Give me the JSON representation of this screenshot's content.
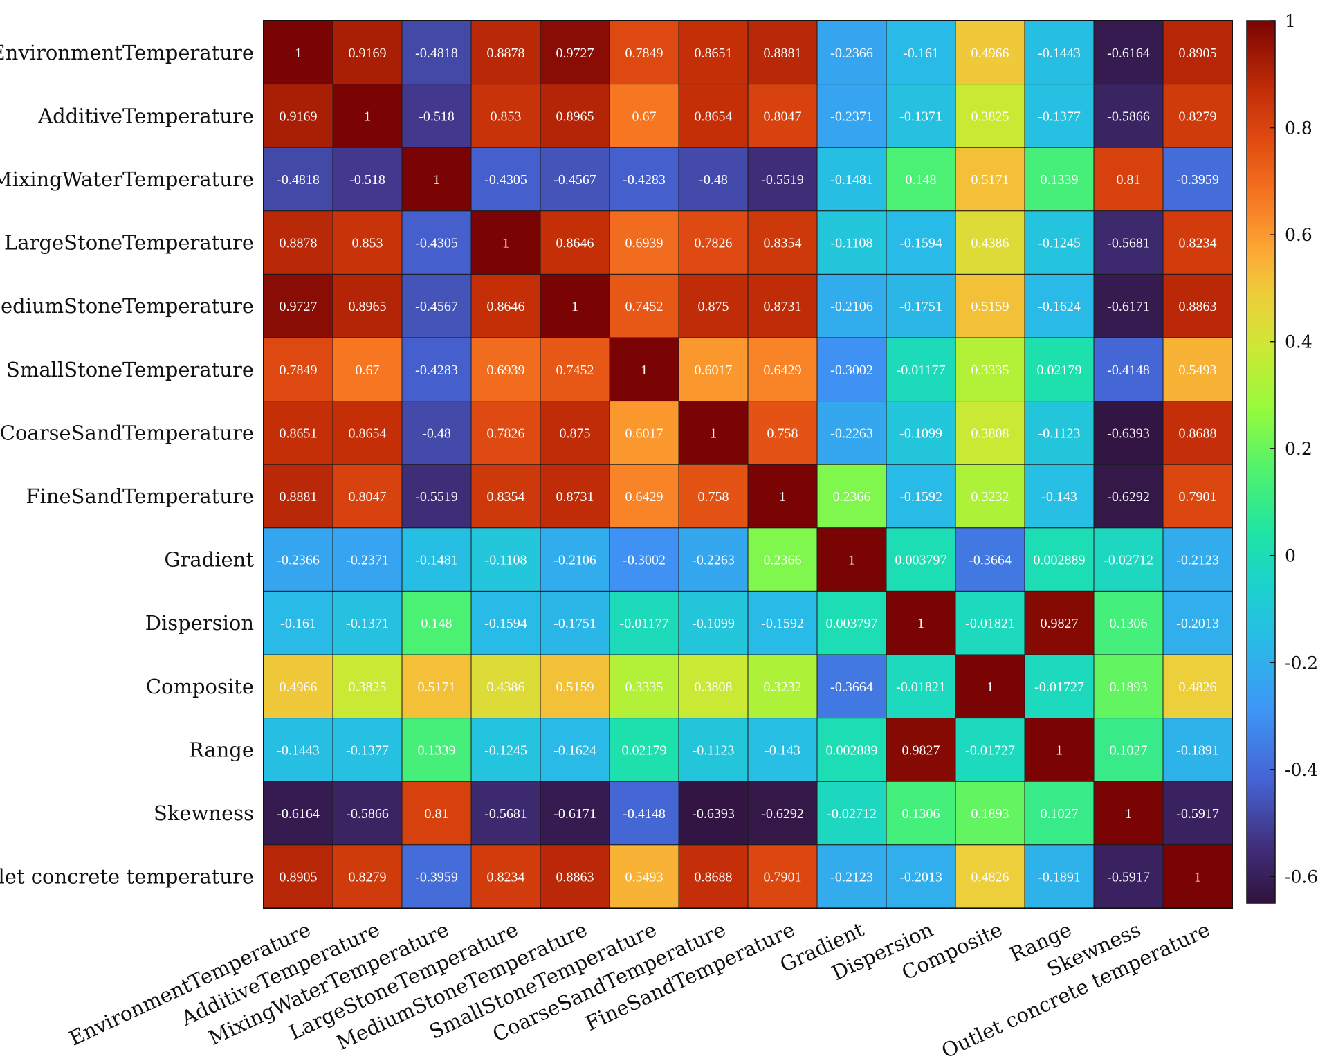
{
  "chart_data": {
    "type": "heatmap",
    "title": "",
    "xlabel": "",
    "ylabel": "",
    "labels": [
      "EnvironmentTemperature",
      "AdditiveTemperature",
      "MixingWaterTemperature",
      "LargeStoneTemperature",
      "MediumStoneTemperature",
      "SmallStoneTemperature",
      "CoarseSandTemperature",
      "FineSandTemperature",
      "Gradient",
      "Dispersion",
      "Composite",
      "Range",
      "Skewness",
      "Outlet concrete temperature"
    ],
    "matrix": [
      [
        "1",
        "0.9169",
        "-0.4818",
        "0.8878",
        "0.9727",
        "0.7849",
        "0.8651",
        "0.8881",
        "-0.2366",
        "-0.161",
        "0.4966",
        "-0.1443",
        "-0.6164",
        "0.8905"
      ],
      [
        "0.9169",
        "1",
        "-0.518",
        "0.853",
        "0.8965",
        "0.67",
        "0.8654",
        "0.8047",
        "-0.2371",
        "-0.1371",
        "0.3825",
        "-0.1377",
        "-0.5866",
        "0.8279"
      ],
      [
        "-0.4818",
        "-0.518",
        "1",
        "-0.4305",
        "-0.4567",
        "-0.4283",
        "-0.48",
        "-0.5519",
        "-0.1481",
        "0.148",
        "0.5171",
        "0.1339",
        "0.81",
        "-0.3959"
      ],
      [
        "0.8878",
        "0.853",
        "-0.4305",
        "1",
        "0.8646",
        "0.6939",
        "0.7826",
        "0.8354",
        "-0.1108",
        "-0.1594",
        "0.4386",
        "-0.1245",
        "-0.5681",
        "0.8234"
      ],
      [
        "0.9727",
        "0.8965",
        "-0.4567",
        "0.8646",
        "1",
        "0.7452",
        "0.875",
        "0.8731",
        "-0.2106",
        "-0.1751",
        "0.5159",
        "-0.1624",
        "-0.6171",
        "0.8863"
      ],
      [
        "0.7849",
        "0.67",
        "-0.4283",
        "0.6939",
        "0.7452",
        "1",
        "0.6017",
        "0.6429",
        "-0.3002",
        "-0.01177",
        "0.3335",
        "0.02179",
        "-0.4148",
        "0.5493"
      ],
      [
        "0.8651",
        "0.8654",
        "-0.48",
        "0.7826",
        "0.875",
        "0.6017",
        "1",
        "0.758",
        "-0.2263",
        "-0.1099",
        "0.3808",
        "-0.1123",
        "-0.6393",
        "0.8688"
      ],
      [
        "0.8881",
        "0.8047",
        "-0.5519",
        "0.8354",
        "0.8731",
        "0.6429",
        "0.758",
        "1",
        "0.2366",
        "-0.1592",
        "0.3232",
        "-0.143",
        "-0.6292",
        "0.7901"
      ],
      [
        "-0.2366",
        "-0.2371",
        "-0.1481",
        "-0.1108",
        "-0.2106",
        "-0.3002",
        "-0.2263",
        "0.2366",
        "1",
        "0.003797",
        "-0.3664",
        "0.002889",
        "-0.02712",
        "-0.2123"
      ],
      [
        "-0.161",
        "-0.1371",
        "0.148",
        "-0.1594",
        "-0.1751",
        "-0.01177",
        "-0.1099",
        "-0.1592",
        "0.003797",
        "1",
        "-0.01821",
        "0.9827",
        "0.1306",
        "-0.2013"
      ],
      [
        "0.4966",
        "0.3825",
        "0.5171",
        "0.4386",
        "0.5159",
        "0.3335",
        "0.3808",
        "0.3232",
        "-0.3664",
        "-0.01821",
        "1",
        "-0.01727",
        "0.1893",
        "0.4826"
      ],
      [
        "-0.1443",
        "-0.1377",
        "0.1339",
        "-0.1245",
        "-0.1624",
        "0.02179",
        "-0.1123",
        "-0.143",
        "0.002889",
        "0.9827",
        "-0.01727",
        "1",
        "0.1027",
        "-0.1891"
      ],
      [
        "-0.6164",
        "-0.5866",
        "0.81",
        "-0.5681",
        "-0.6171",
        "-0.4148",
        "-0.6393",
        "-0.6292",
        "-0.02712",
        "0.1306",
        "0.1893",
        "0.1027",
        "1",
        "-0.5917"
      ],
      [
        "0.8905",
        "0.8279",
        "-0.3959",
        "0.8234",
        "0.8863",
        "0.5493",
        "0.8688",
        "0.7901",
        "-0.2123",
        "-0.2013",
        "0.4826",
        "-0.1891",
        "-0.5917",
        "1"
      ]
    ],
    "colorbar": {
      "range": [
        -0.65,
        1
      ],
      "ticks": [
        "1",
        "0.8",
        "0.6",
        "0.4",
        "0.2",
        "0",
        "-0.2",
        "-0.4",
        "-0.6"
      ],
      "colormap": "turbo"
    },
    "grid": true,
    "legend": "colorbar-right"
  }
}
